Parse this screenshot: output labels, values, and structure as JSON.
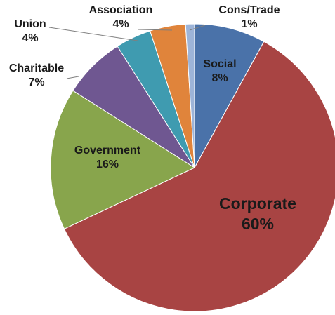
{
  "chart_data": {
    "type": "pie",
    "title": "",
    "start_angle_deg": 0,
    "direction": "clockwise",
    "slices": [
      {
        "label": "Social",
        "value": 8,
        "value_label": "8%",
        "color": "#4a72a9"
      },
      {
        "label": "Corporate",
        "value": 60,
        "value_label": "60%",
        "color": "#a84443"
      },
      {
        "label": "Government",
        "value": 16,
        "value_label": "16%",
        "color": "#88a54c"
      },
      {
        "label": "Charitable",
        "value": 7,
        "value_label": "7%",
        "color": "#6f5791"
      },
      {
        "label": "Union",
        "value": 4,
        "value_label": "4%",
        "color": "#3f9bb0"
      },
      {
        "label": "Association",
        "value": 4,
        "value_label": "4%",
        "color": "#e0843b"
      },
      {
        "label": "Cons/Trade",
        "value": 1,
        "value_label": "1%",
        "color": "#9db4d8"
      }
    ]
  }
}
